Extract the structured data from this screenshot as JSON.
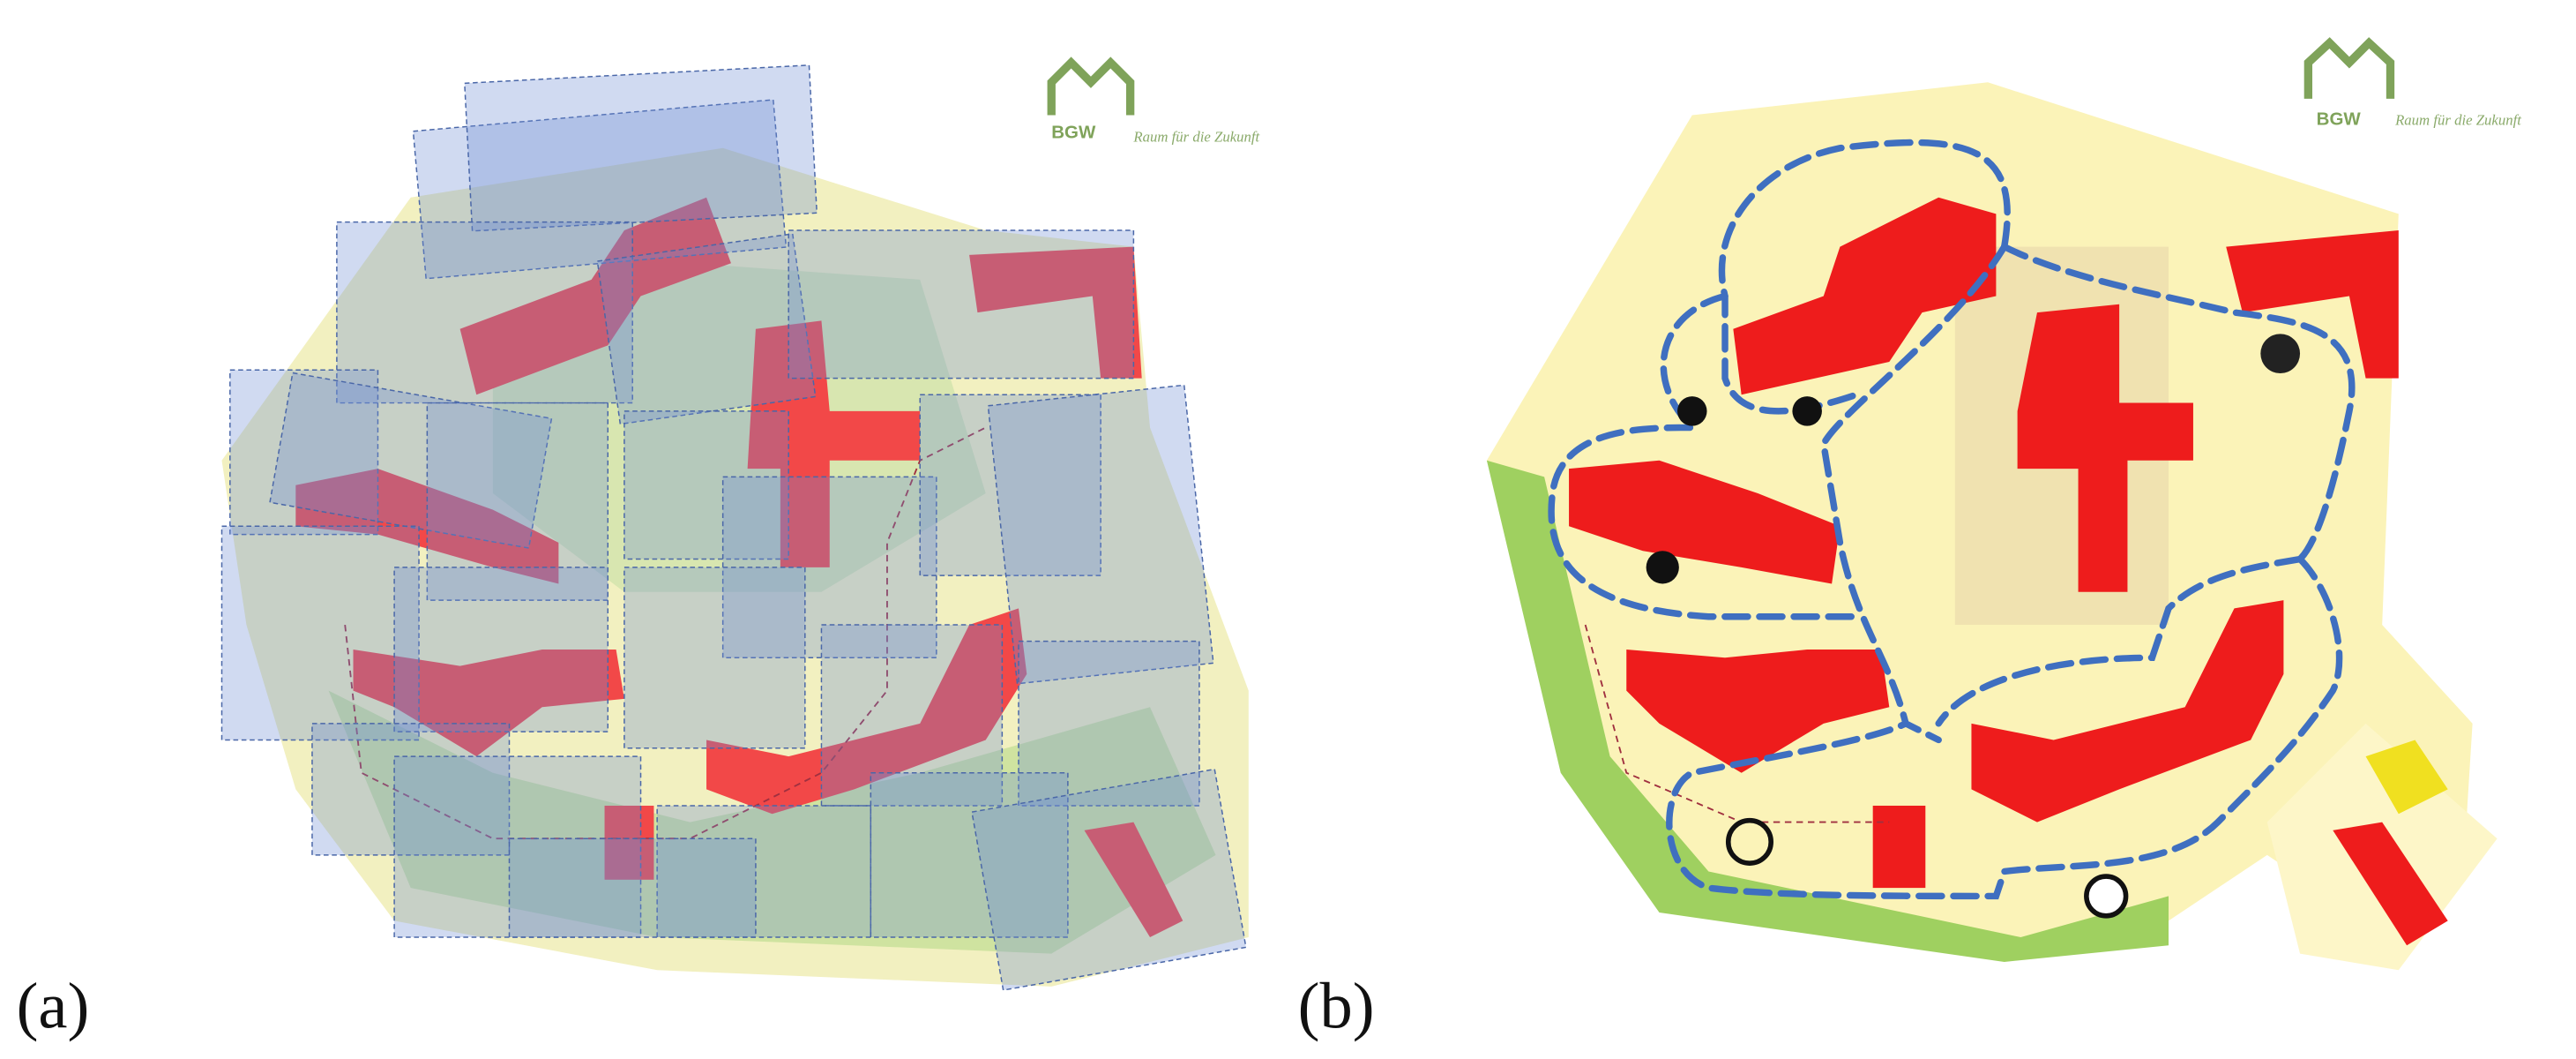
{
  "panels": [
    {
      "label": "(a)",
      "logo": {
        "name": "BGW",
        "slogan": "Raum für die Zukunft"
      }
    },
    {
      "label": "(b)",
      "logo": {
        "name": "BGW",
        "slogan": "Raum für die Zukunft"
      }
    }
  ]
}
